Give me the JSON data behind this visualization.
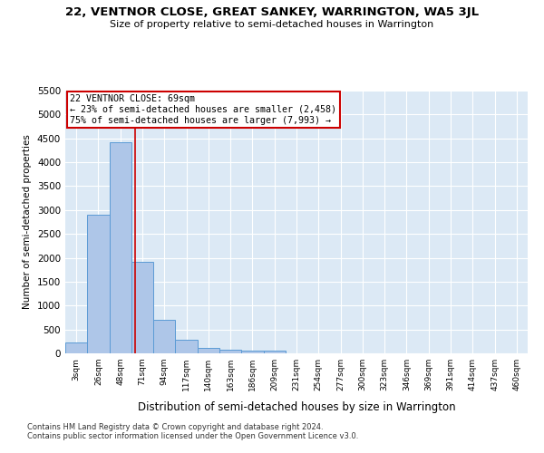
{
  "title": "22, VENTNOR CLOSE, GREAT SANKEY, WARRINGTON, WA5 3JL",
  "subtitle": "Size of property relative to semi-detached houses in Warrington",
  "xlabel": "Distribution of semi-detached houses by size in Warrington",
  "ylabel": "Number of semi-detached properties",
  "categories": [
    "3sqm",
    "26sqm",
    "48sqm",
    "71sqm",
    "94sqm",
    "117sqm",
    "140sqm",
    "163sqm",
    "186sqm",
    "209sqm",
    "231sqm",
    "254sqm",
    "277sqm",
    "300sqm",
    "323sqm",
    "346sqm",
    "369sqm",
    "391sqm",
    "414sqm",
    "437sqm",
    "460sqm"
  ],
  "values": [
    220,
    2900,
    4420,
    1920,
    710,
    280,
    120,
    75,
    55,
    50,
    0,
    0,
    0,
    0,
    0,
    0,
    0,
    0,
    0,
    0,
    0
  ],
  "bar_color": "#aec6e8",
  "bar_edge_color": "#5b9bd5",
  "red_line_x": 2.65,
  "annotation_text": "22 VENTNOR CLOSE: 69sqm\n← 23% of semi-detached houses are smaller (2,458)\n75% of semi-detached houses are larger (7,993) →",
  "annotation_box_color": "#ffffff",
  "annotation_box_edge": "#cc0000",
  "ylim": [
    0,
    5500
  ],
  "yticks": [
    0,
    500,
    1000,
    1500,
    2000,
    2500,
    3000,
    3500,
    4000,
    4500,
    5000,
    5500
  ],
  "bg_color": "#dce9f5",
  "footer1": "Contains HM Land Registry data © Crown copyright and database right 2024.",
  "footer2": "Contains public sector information licensed under the Open Government Licence v3.0."
}
